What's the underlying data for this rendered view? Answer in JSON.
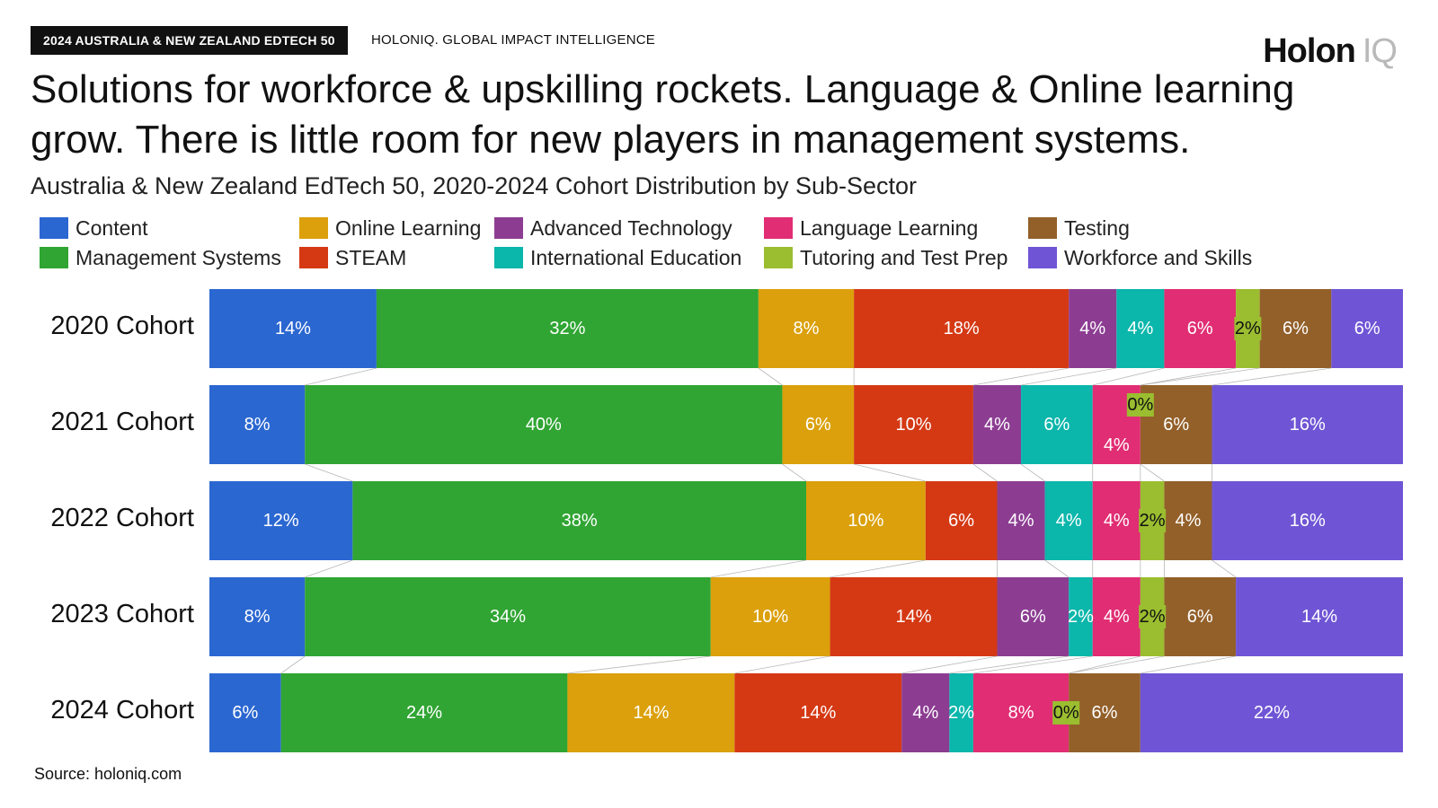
{
  "header": {
    "tag": "2024 AUSTRALIA & NEW ZEALAND EDTECH 50",
    "brand_line": "HOLONIQ. GLOBAL IMPACT INTELLIGENCE",
    "logo_main": "Holon",
    "logo_accent": "IQ",
    "headline_1": "Solutions for workforce & upskilling rockets. Language & Online learning",
    "headline_2": "grow.  There is little room for new players in management systems.",
    "subtitle": "Australia & New Zealand EdTech 50, 2020-2024 Cohort Distribution by Sub-Sector"
  },
  "source": "Source: holoniq.com",
  "chart_data": {
    "type": "bar",
    "orientation": "horizontal-stacked-100",
    "title": "Australia & New Zealand EdTech 50, 2020-2024 Cohort Distribution by Sub-Sector",
    "legend_placement": "top",
    "categories": [
      "2020 Cohort",
      "2021 Cohort",
      "2022 Cohort",
      "2023 Cohort",
      "2024 Cohort"
    ],
    "series": [
      {
        "name": "Content",
        "color": "#2b67d1",
        "values": [
          14,
          8,
          12,
          8,
          6
        ]
      },
      {
        "name": "Management Systems",
        "color": "#30a533",
        "values": [
          32,
          40,
          38,
          34,
          24
        ]
      },
      {
        "name": "Online Learning",
        "color": "#dba00b",
        "values": [
          8,
          6,
          10,
          10,
          14
        ]
      },
      {
        "name": "STEAM",
        "color": "#d53914",
        "values": [
          18,
          10,
          6,
          14,
          14
        ]
      },
      {
        "name": "Advanced Technology",
        "color": "#8c3d92",
        "values": [
          4,
          4,
          4,
          6,
          4
        ]
      },
      {
        "name": "International Education",
        "color": "#0bb6ab",
        "values": [
          4,
          6,
          4,
          2,
          2
        ]
      },
      {
        "name": "Language Learning",
        "color": "#e02d73",
        "values": [
          6,
          4,
          4,
          4,
          8
        ]
      },
      {
        "name": "Tutoring and Test Prep",
        "color": "#9bbd30",
        "values": [
          2,
          0,
          2,
          2,
          0
        ]
      },
      {
        "name": "Testing",
        "color": "#93602a",
        "values": [
          6,
          6,
          4,
          6,
          6
        ]
      },
      {
        "name": "Workforce and Skills",
        "color": "#6f55d5",
        "values": [
          6,
          16,
          16,
          14,
          22
        ]
      }
    ],
    "value_suffix": "%"
  }
}
